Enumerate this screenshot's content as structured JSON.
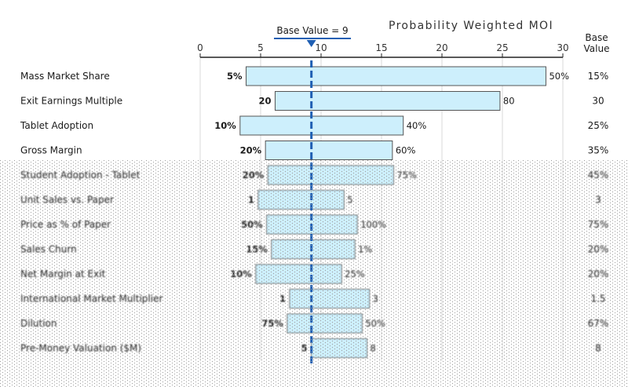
{
  "chart_data": {
    "type": "tornado",
    "title": "Probability Weighted MOI",
    "base_marker_label": "Base Value = 9",
    "base_value": 9.2,
    "base_column_header": [
      "Base",
      "Value"
    ],
    "xlim": [
      0,
      30
    ],
    "x_ticks": [
      "0",
      "5",
      "10",
      "15",
      "20",
      "25",
      "30"
    ],
    "rows": [
      {
        "label": "Mass Market Share",
        "low_label": "5%",
        "high_label": "50%",
        "low": 3.8,
        "high": 28.6,
        "base": "15%"
      },
      {
        "label": "Exit Earnings Multiple",
        "low_label": "20",
        "high_label": "80",
        "low": 6.2,
        "high": 24.8,
        "base": "30"
      },
      {
        "label": "Tablet Adoption",
        "low_label": "10%",
        "high_label": "40%",
        "low": 3.3,
        "high": 16.8,
        "base": "25%"
      },
      {
        "label": "Gross Margin",
        "low_label": "20%",
        "high_label": "60%",
        "low": 5.4,
        "high": 15.9,
        "base": "35%"
      },
      {
        "label": "Student Adoption - Tablet",
        "low_label": "20%",
        "high_label": "75%",
        "low": 5.6,
        "high": 16.0,
        "base": "45%"
      },
      {
        "label": "Unit Sales vs. Paper",
        "low_label": "1",
        "high_label": "5",
        "low": 4.8,
        "high": 11.9,
        "base": "3"
      },
      {
        "label": "Price as % of Paper",
        "low_label": "50%",
        "high_label": "100%",
        "low": 5.5,
        "high": 13.0,
        "base": "75%"
      },
      {
        "label": "Sales Churn",
        "low_label": "15%",
        "high_label": "1%",
        "low": 5.9,
        "high": 12.8,
        "base": "20%"
      },
      {
        "label": "Net Margin at Exit",
        "low_label": "10%",
        "high_label": "25%",
        "low": 4.6,
        "high": 11.7,
        "base": "20%"
      },
      {
        "label": "International Market Multiplier",
        "low_label": "1",
        "high_label": "3",
        "low": 7.4,
        "high": 14.0,
        "base": "1.5"
      },
      {
        "label": "Dilution",
        "low_label": "75%",
        "high_label": "50%",
        "low": 7.2,
        "high": 13.4,
        "base": "67%"
      },
      {
        "label": "Pre-Money Valuation ($M)",
        "low_label": "5",
        "high_label": "8",
        "low": 9.2,
        "high": 13.8,
        "base": "8"
      }
    ],
    "grid": "vertical",
    "colors": {
      "bar_fill": "#cdeffc",
      "bar_stroke": "#555555",
      "base_line": "#1f5fb3",
      "axis": "#222222",
      "grid": "#d9d9d9"
    }
  }
}
